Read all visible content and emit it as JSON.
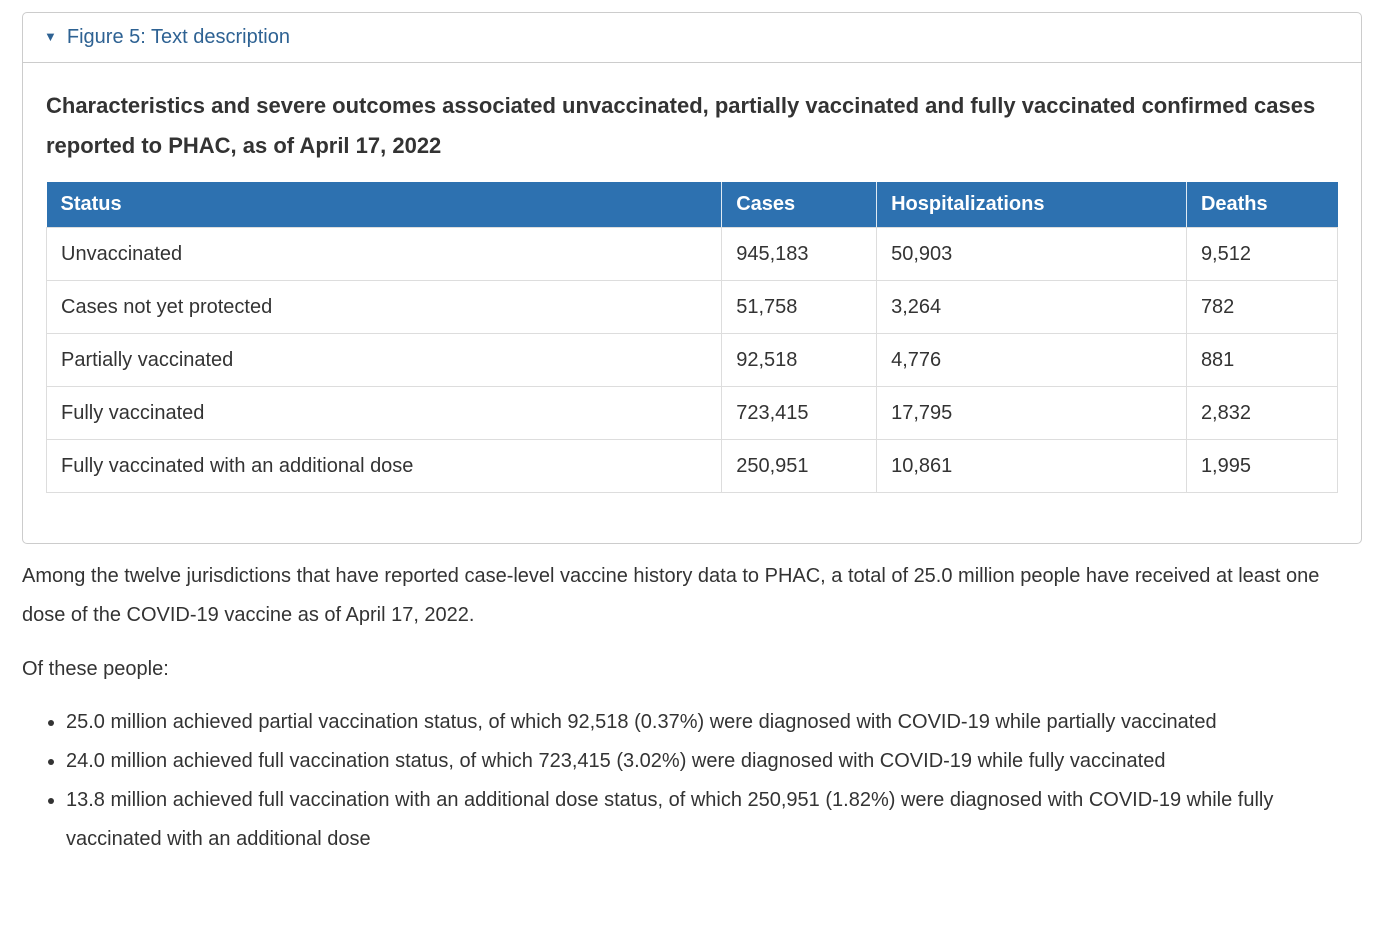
{
  "accordion": {
    "marker": "▼",
    "summary_label": "Figure 5: Text description"
  },
  "figure": {
    "title": "Characteristics and severe outcomes associated unvaccinated, partially vaccinated and fully vaccinated confirmed cases reported to PHAC, as of April 17, 2022",
    "table": {
      "columns": [
        "Status",
        "Cases",
        "Hospitalizations",
        "Deaths"
      ],
      "rows": [
        {
          "status": "Unvaccinated",
          "cases": "945,183",
          "hospitalizations": "50,903",
          "deaths": "9,512"
        },
        {
          "status": "Cases not yet protected",
          "cases": "51,758",
          "hospitalizations": "3,264",
          "deaths": "782"
        },
        {
          "status": "Partially vaccinated",
          "cases": "92,518",
          "hospitalizations": "4,776",
          "deaths": "881"
        },
        {
          "status": "Fully vaccinated",
          "cases": "723,415",
          "hospitalizations": "17,795",
          "deaths": "2,832"
        },
        {
          "status": "Fully vaccinated with an additional dose",
          "cases": "250,951",
          "hospitalizations": "10,861",
          "deaths": "1,995"
        }
      ]
    }
  },
  "body_text": {
    "paragraph_jurisdictions": "Among the twelve jurisdictions that have reported case-level vaccine history data to PHAC, a total of 25.0 million people have received at least one dose of the COVID-19 vaccine as of April 17, 2022.",
    "paragraph_of_these": "Of these people:",
    "bullets": [
      "25.0 million achieved partial vaccination status, of which 92,518 (0.37%) were diagnosed with COVID-19 while partially vaccinated",
      "24.0 million achieved full vaccination status, of which 723,415 (3.02%) were diagnosed with COVID-19 while fully vaccinated",
      "13.8 million achieved full vaccination with an additional dose status, of which 250,951 (1.82%) were diagnosed with COVID-19 while fully vaccinated with an additional dose"
    ]
  },
  "colors": {
    "table_header_bg": "#2d71b0",
    "table_header_text": "#ffffff",
    "summary_link": "#2e6293",
    "body_text": "#333333",
    "panel_border": "#cccccc",
    "cell_border": "#dddddd"
  }
}
